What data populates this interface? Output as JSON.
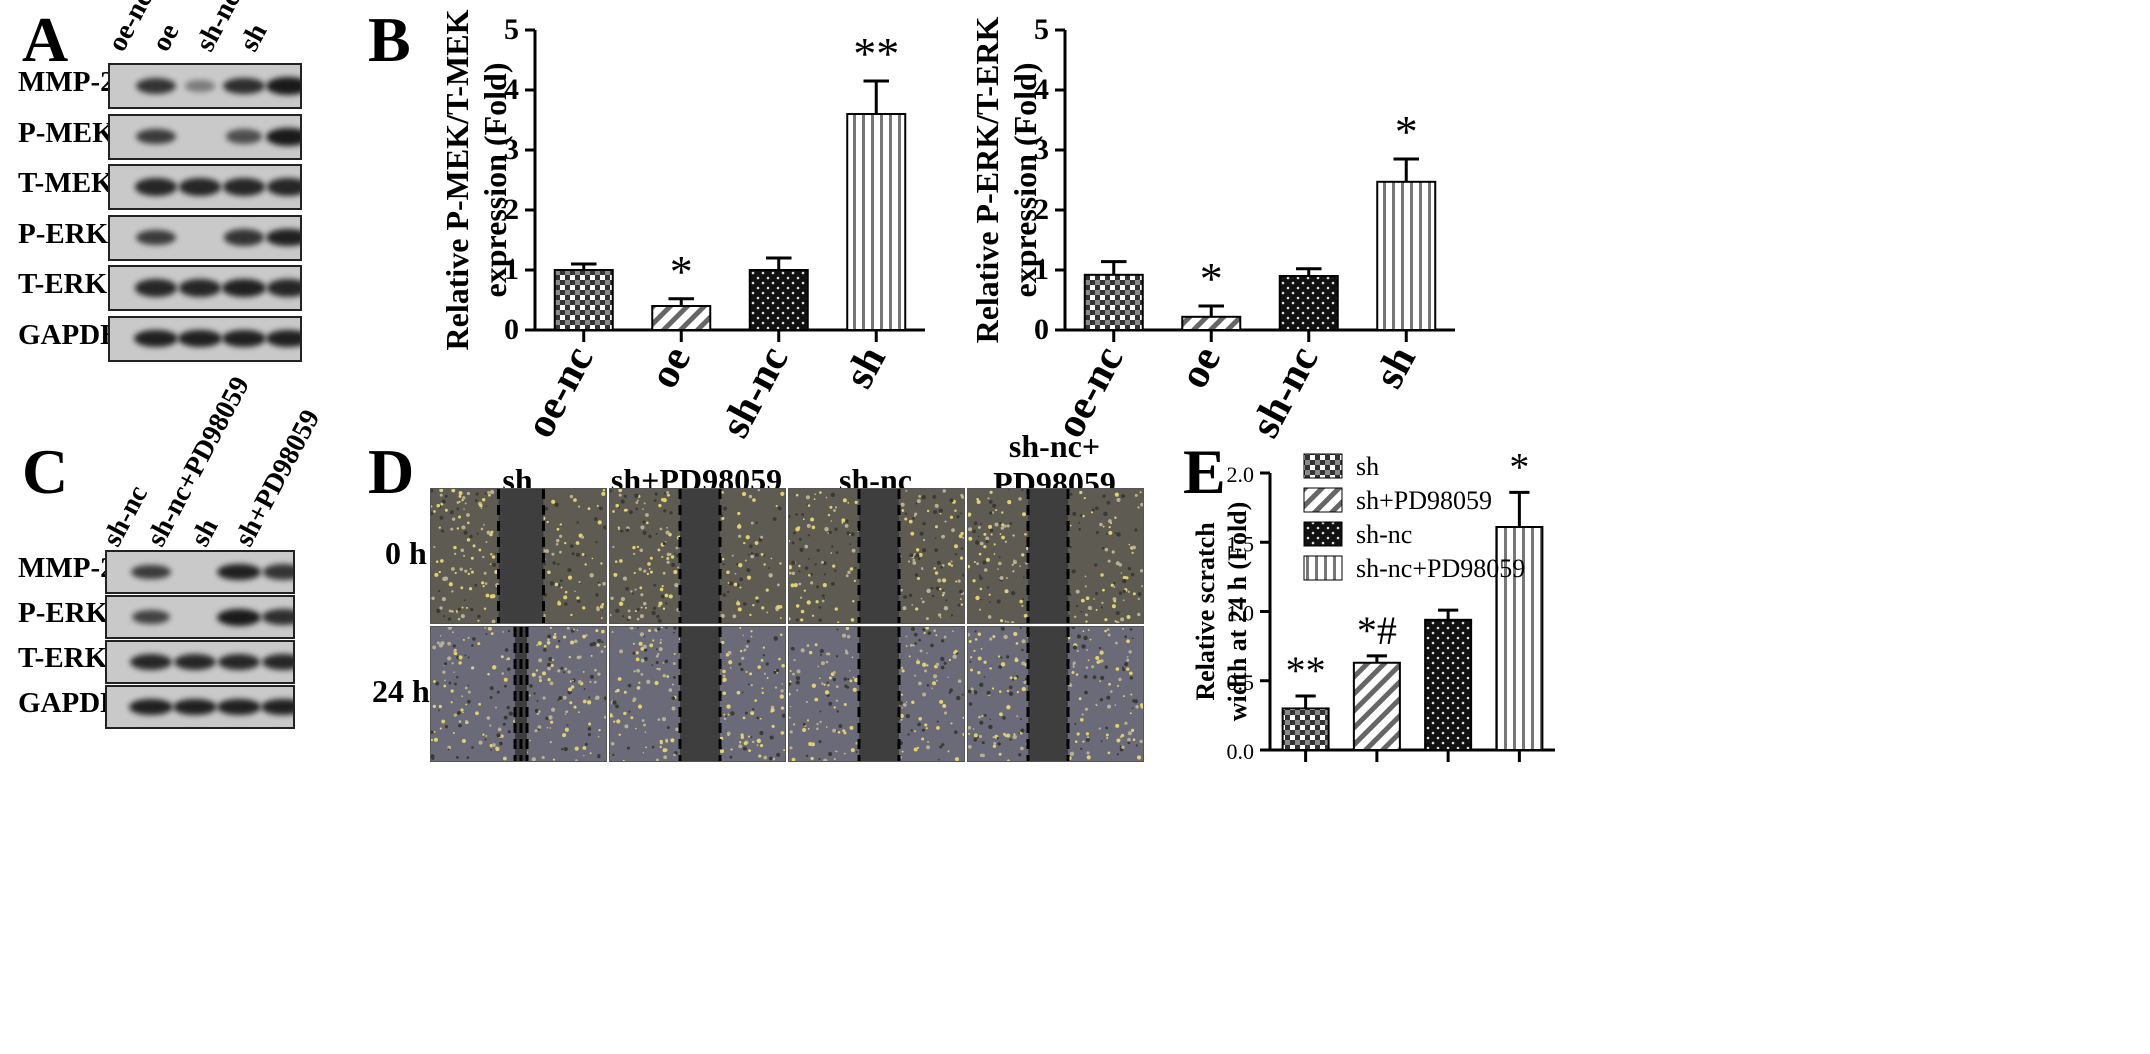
{
  "panels": {
    "A": {
      "letter": "A",
      "lanes": [
        "oe-nc",
        "oe",
        "sh-nc",
        "sh"
      ],
      "rows": [
        {
          "label": "MMP-2",
          "bands": [
            0.8,
            0.25,
            0.85,
            1.0
          ]
        },
        {
          "label": "P-MEK",
          "bands": [
            0.75,
            0.0,
            0.6,
            1.0
          ]
        },
        {
          "label": "T-MEK",
          "bands": [
            0.9,
            0.9,
            0.9,
            0.9
          ]
        },
        {
          "label": "P-ERK",
          "bands": [
            0.75,
            0.0,
            0.8,
            0.95
          ]
        },
        {
          "label": "T-ERK",
          "bands": [
            0.9,
            0.9,
            0.95,
            0.9
          ]
        },
        {
          "label": "GAPDH",
          "bands": [
            0.95,
            0.95,
            0.95,
            0.95
          ]
        }
      ]
    },
    "B": {
      "letter": "B"
    },
    "C": {
      "letter": "C",
      "lanes": [
        "sh-nc",
        "sh-nc+PD98059",
        "sh",
        "sh+PD98059"
      ],
      "rows": [
        {
          "label": "MMP-2",
          "bands": [
            0.75,
            0.0,
            0.95,
            0.8
          ]
        },
        {
          "label": "P-ERK",
          "bands": [
            0.7,
            0.0,
            1.0,
            0.85
          ]
        },
        {
          "label": "T-ERK",
          "bands": [
            0.9,
            0.9,
            0.9,
            0.9
          ]
        },
        {
          "label": "GAPDH",
          "bands": [
            0.95,
            0.95,
            0.95,
            0.95
          ]
        }
      ]
    },
    "D": {
      "letter": "D",
      "columns": [
        "sh",
        "sh+PD98059",
        "sh-nc",
        "sh-nc+\nPD98059"
      ],
      "rows": [
        "0 h",
        "24 h"
      ]
    },
    "E": {
      "letter": "E"
    }
  },
  "chart_data": [
    {
      "type": "bar",
      "panel": "B-left",
      "categories": [
        "oe-nc",
        "oe",
        "sh-nc",
        "sh"
      ],
      "values": [
        1.0,
        0.4,
        1.0,
        3.6
      ],
      "errors": [
        0.1,
        0.12,
        0.2,
        0.55
      ],
      "significance": [
        "",
        "*",
        "",
        "**"
      ],
      "patterns": [
        "checker",
        "diag",
        "dots",
        "vlines"
      ],
      "ylabel": "Relative  P-MEK/T-MEK\nexpression (Fold)",
      "ylim": [
        0,
        5
      ],
      "yticks": [
        0,
        1,
        2,
        3,
        4,
        5
      ]
    },
    {
      "type": "bar",
      "panel": "B-right",
      "categories": [
        "oe-nc",
        "oe",
        "sh-nc",
        "sh"
      ],
      "values": [
        0.92,
        0.22,
        0.9,
        2.47
      ],
      "errors": [
        0.22,
        0.18,
        0.12,
        0.38
      ],
      "significance": [
        "",
        "*",
        "",
        "*"
      ],
      "patterns": [
        "checker",
        "diag",
        "dots",
        "vlines"
      ],
      "ylabel": "Relative  P-ERK/T-ERK\nexpression (Fold)",
      "ylim": [
        0,
        5
      ],
      "yticks": [
        0,
        1,
        2,
        3,
        4,
        5
      ]
    },
    {
      "type": "bar",
      "panel": "E",
      "categories": [
        "sh",
        "sh+PD98059",
        "sh-nc",
        "sh-nc+PD98059"
      ],
      "values": [
        0.3,
        0.63,
        0.94,
        1.61
      ],
      "errors": [
        0.09,
        0.05,
        0.07,
        0.25
      ],
      "significance": [
        "**",
        "*#",
        "",
        "*"
      ],
      "patterns": [
        "checker",
        "diag",
        "dots",
        "vlines"
      ],
      "ylabel": "Relative scratch\nwidth at 24 h (Fold)",
      "ylim": [
        0,
        2.0
      ],
      "yticks": [
        0.0,
        0.5,
        1.0,
        1.5,
        2.0
      ],
      "legend": [
        "sh",
        "sh+PD98059",
        "sh-nc",
        "sh-nc+PD98059"
      ],
      "legend_position": "top-left"
    }
  ]
}
